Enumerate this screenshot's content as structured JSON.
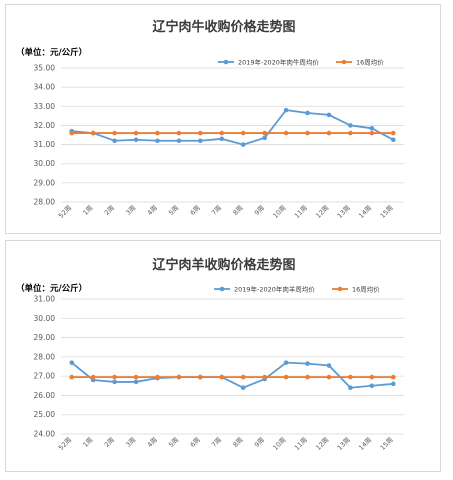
{
  "chart_data": [
    {
      "type": "line",
      "title": "辽宁肉牛收购价格走势图",
      "unit_label": "（单位：元/公斤）",
      "ylim": [
        28,
        35
      ],
      "yticks": [
        "28.00",
        "29.00",
        "30.00",
        "31.00",
        "32.00",
        "33.00",
        "34.00",
        "35.00"
      ],
      "categories": [
        "52周",
        "1周",
        "2周",
        "3周",
        "4周",
        "5周",
        "6周",
        "7周",
        "8周",
        "9周",
        "10周",
        "11周",
        "12周",
        "13周",
        "14周",
        "15周"
      ],
      "legend_position": "top-right",
      "grid": true,
      "series": [
        {
          "name": "2019年-2020年肉牛周均价",
          "color": "#5b9bd5",
          "values": [
            31.7,
            31.6,
            31.2,
            31.25,
            31.2,
            31.2,
            31.2,
            31.3,
            31.0,
            31.35,
            32.8,
            32.65,
            32.55,
            32.0,
            31.85,
            31.25
          ]
        },
        {
          "name": "16周均价",
          "color": "#ed7d31",
          "values": [
            31.6,
            31.6,
            31.6,
            31.6,
            31.6,
            31.6,
            31.6,
            31.6,
            31.6,
            31.6,
            31.6,
            31.6,
            31.6,
            31.6,
            31.6,
            31.6
          ]
        }
      ]
    },
    {
      "type": "line",
      "title": "辽宁肉羊收购价格走势图",
      "unit_label": "（单位：元/公斤）",
      "ylim": [
        24,
        31
      ],
      "yticks": [
        "24.00",
        "25.00",
        "26.00",
        "27.00",
        "28.00",
        "29.00",
        "30.00",
        "31.00"
      ],
      "categories": [
        "52周",
        "1周",
        "2周",
        "3周",
        "4周",
        "5周",
        "6周",
        "7周",
        "8周",
        "9周",
        "10周",
        "11周",
        "12周",
        "13周",
        "14周",
        "15周"
      ],
      "legend_position": "top-right",
      "grid": true,
      "series": [
        {
          "name": "2019年-2020年肉羊周均价",
          "color": "#5b9bd5",
          "values": [
            27.7,
            26.8,
            26.7,
            26.7,
            26.9,
            26.95,
            26.95,
            26.95,
            26.4,
            26.85,
            27.7,
            27.65,
            27.55,
            26.4,
            26.5,
            26.6
          ]
        },
        {
          "name": "16周均价",
          "color": "#ed7d31",
          "values": [
            26.95,
            26.95,
            26.95,
            26.95,
            26.95,
            26.95,
            26.95,
            26.95,
            26.95,
            26.95,
            26.95,
            26.95,
            26.95,
            26.95,
            26.95,
            26.95
          ]
        }
      ]
    }
  ]
}
